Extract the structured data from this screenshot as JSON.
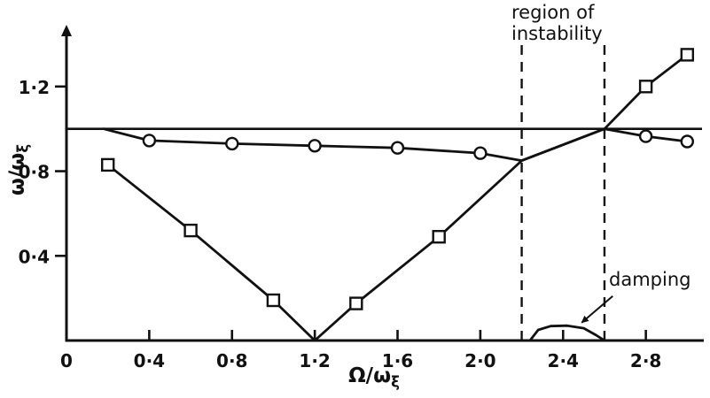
{
  "figure": {
    "bg": "#ffffff",
    "ink": "#111111"
  },
  "chart_data": {
    "type": "line",
    "title": "",
    "xlabel_main": "Ω/ω",
    "xlabel_sub": "ξ",
    "ylabel_main": "ω/ω",
    "ylabel_sub": "ξ",
    "xlim": [
      0,
      3.05
    ],
    "ylim": [
      0,
      1.45
    ],
    "grid": false,
    "x_ticks": [
      {
        "v": 0,
        "label": "0"
      },
      {
        "v": 0.4,
        "label": "0·4"
      },
      {
        "v": 0.8,
        "label": "0·8"
      },
      {
        "v": 1.2,
        "label": "1·2"
      },
      {
        "v": 1.6,
        "label": "1·6"
      },
      {
        "v": 2.0,
        "label": "2·0"
      },
      {
        "v": 2.4,
        "label": "2·4"
      },
      {
        "v": 2.8,
        "label": "2·8"
      }
    ],
    "y_ticks": [
      {
        "v": 0.4,
        "label": "0·4"
      },
      {
        "v": 0.8,
        "label": "0·8"
      },
      {
        "v": 1.2,
        "label": "1·2"
      }
    ],
    "reference_line_y": 1.0,
    "series": [
      {
        "name": "circle-branch",
        "marker": "circle",
        "x": [
          0.18,
          0.4,
          0.8,
          1.2,
          1.6,
          2.0,
          2.2,
          2.6,
          2.8,
          3.0
        ],
        "y": [
          1.0,
          0.945,
          0.93,
          0.92,
          0.91,
          0.885,
          0.85,
          1.0,
          0.965,
          0.94
        ],
        "markers": [
          [
            0.4,
            0.945
          ],
          [
            0.8,
            0.93
          ],
          [
            1.2,
            0.92
          ],
          [
            1.6,
            0.91
          ],
          [
            2.0,
            0.885
          ],
          [
            2.8,
            0.965
          ],
          [
            3.0,
            0.94
          ]
        ]
      },
      {
        "name": "square-branch",
        "marker": "square",
        "x": [
          0.2,
          0.6,
          1.0,
          1.2,
          1.4,
          1.8,
          2.2,
          2.6,
          2.8,
          3.0
        ],
        "y": [
          0.83,
          0.52,
          0.19,
          0.0,
          0.175,
          0.49,
          0.85,
          1.0,
          1.2,
          1.35
        ],
        "markers": [
          [
            0.2,
            0.83
          ],
          [
            0.6,
            0.52
          ],
          [
            1.0,
            0.19
          ],
          [
            1.4,
            0.175
          ],
          [
            1.8,
            0.49
          ],
          [
            2.8,
            1.2
          ],
          [
            3.0,
            1.35
          ]
        ]
      },
      {
        "name": "damping-curve",
        "marker": "none",
        "x": [
          2.24,
          2.28,
          2.34,
          2.42,
          2.5,
          2.56,
          2.6
        ],
        "y": [
          0,
          0.05,
          0.068,
          0.07,
          0.058,
          0.025,
          0
        ],
        "markers": []
      }
    ],
    "instability_region": {
      "x_start": 2.2,
      "x_end": 2.6,
      "label_line1": "region of",
      "label_line2": "instability"
    },
    "damping_annotation": {
      "label": "damping",
      "arrow_from": [
        2.64,
        0.21
      ],
      "arrow_to": [
        2.49,
        0.085
      ]
    }
  }
}
